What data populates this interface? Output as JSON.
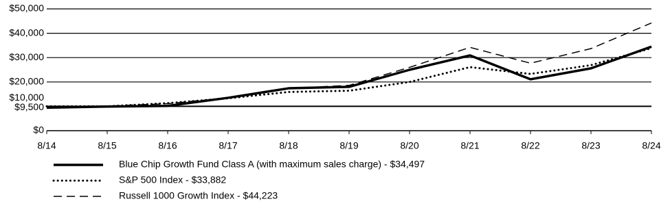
{
  "chart_data": {
    "type": "line",
    "categories": [
      "8/14",
      "8/15",
      "8/16",
      "8/17",
      "8/18",
      "8/19",
      "8/20",
      "8/21",
      "8/22",
      "8/23",
      "8/24"
    ],
    "series": [
      {
        "name": "Blue Chip Growth Fund Class A (with maximum sales charge)  - $34,497",
        "color": "#000000",
        "style": "solid",
        "values": [
          9450,
          9900,
          10200,
          13500,
          17400,
          18000,
          25000,
          30900,
          21100,
          25600,
          34497
        ]
      },
      {
        "name": "S&P 500 Index - $33,882",
        "color": "#000000",
        "style": "dotted",
        "values": [
          10000,
          10000,
          11300,
          13300,
          15900,
          16400,
          20000,
          26100,
          23300,
          26900,
          33882
        ]
      },
      {
        "name": "Russell 1000 Growth Index - $44,223",
        "color": "#000000",
        "style": "dashed",
        "values": [
          10000,
          10100,
          11100,
          13500,
          17400,
          18600,
          26000,
          34200,
          27700,
          33700,
          44223
        ]
      }
    ],
    "ylim": [
      0,
      50000
    ],
    "yticks": [
      {
        "value": 0,
        "label": "$0"
      },
      {
        "value": 9500,
        "label": "$9,500"
      },
      {
        "value": 10000,
        "label": "$10,000"
      },
      {
        "value": 20000,
        "label": "$20,000"
      },
      {
        "value": 30000,
        "label": "$30,000"
      },
      {
        "value": 40000,
        "label": "$40,000"
      },
      {
        "value": 50000,
        "label": "$50,000"
      }
    ],
    "grid": true
  }
}
